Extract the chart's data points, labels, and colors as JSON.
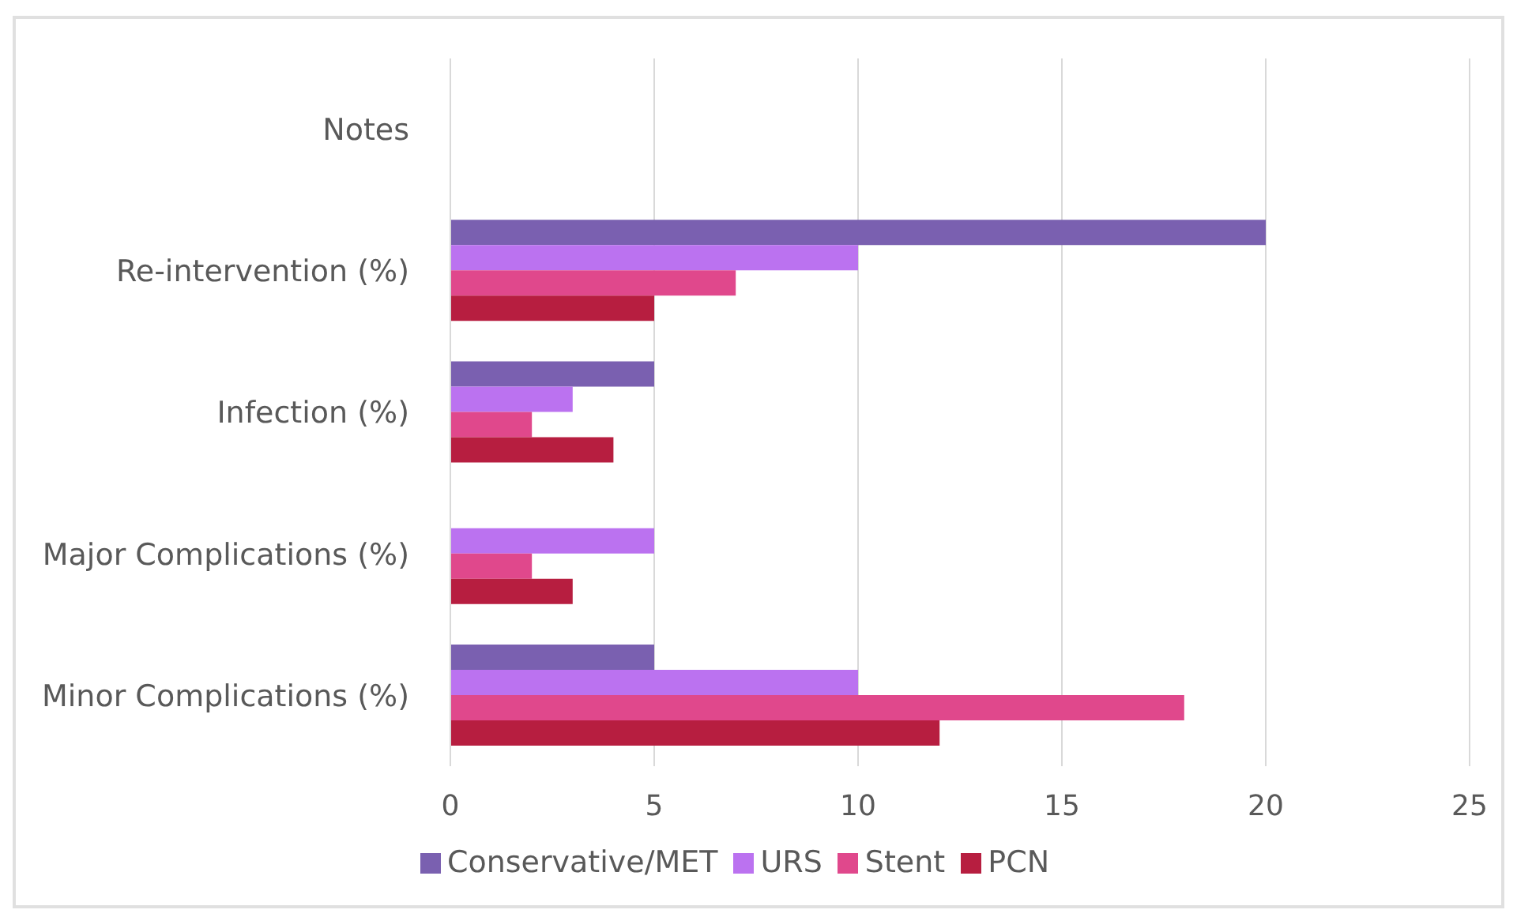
{
  "chart_data": {
    "type": "bar",
    "orientation": "horizontal",
    "categories": [
      "Notes",
      "Re-intervention (%)",
      "Infection (%)",
      "Major Complications (%)",
      "Minor Complications (%)"
    ],
    "series": [
      {
        "name": "Conservative/MET",
        "color": "#7a60b0",
        "values": [
          null,
          20,
          5,
          null,
          5
        ]
      },
      {
        "name": "URS",
        "color": "#bb72f0",
        "values": [
          null,
          10,
          3,
          5,
          10
        ]
      },
      {
        "name": "Stent",
        "color": "#e0488c",
        "values": [
          null,
          7,
          2,
          2,
          18
        ]
      },
      {
        "name": "PCN",
        "color": "#b71e40",
        "values": [
          null,
          5,
          4,
          3,
          12
        ]
      }
    ],
    "xlim": [
      0,
      25
    ],
    "xticks": [
      0,
      5,
      10,
      15,
      20,
      25
    ],
    "grid": "x",
    "legend": "bottom"
  }
}
